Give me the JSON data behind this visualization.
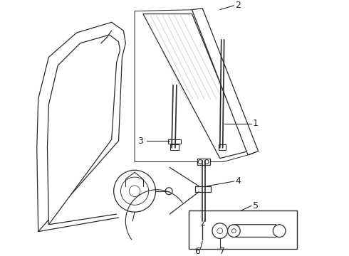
{
  "bg_color": "#ffffff",
  "line_color": "#2a2a2a",
  "figsize": [
    4.9,
    3.6
  ],
  "dpi": 100,
  "label_fs": 8,
  "lw": 0.9
}
